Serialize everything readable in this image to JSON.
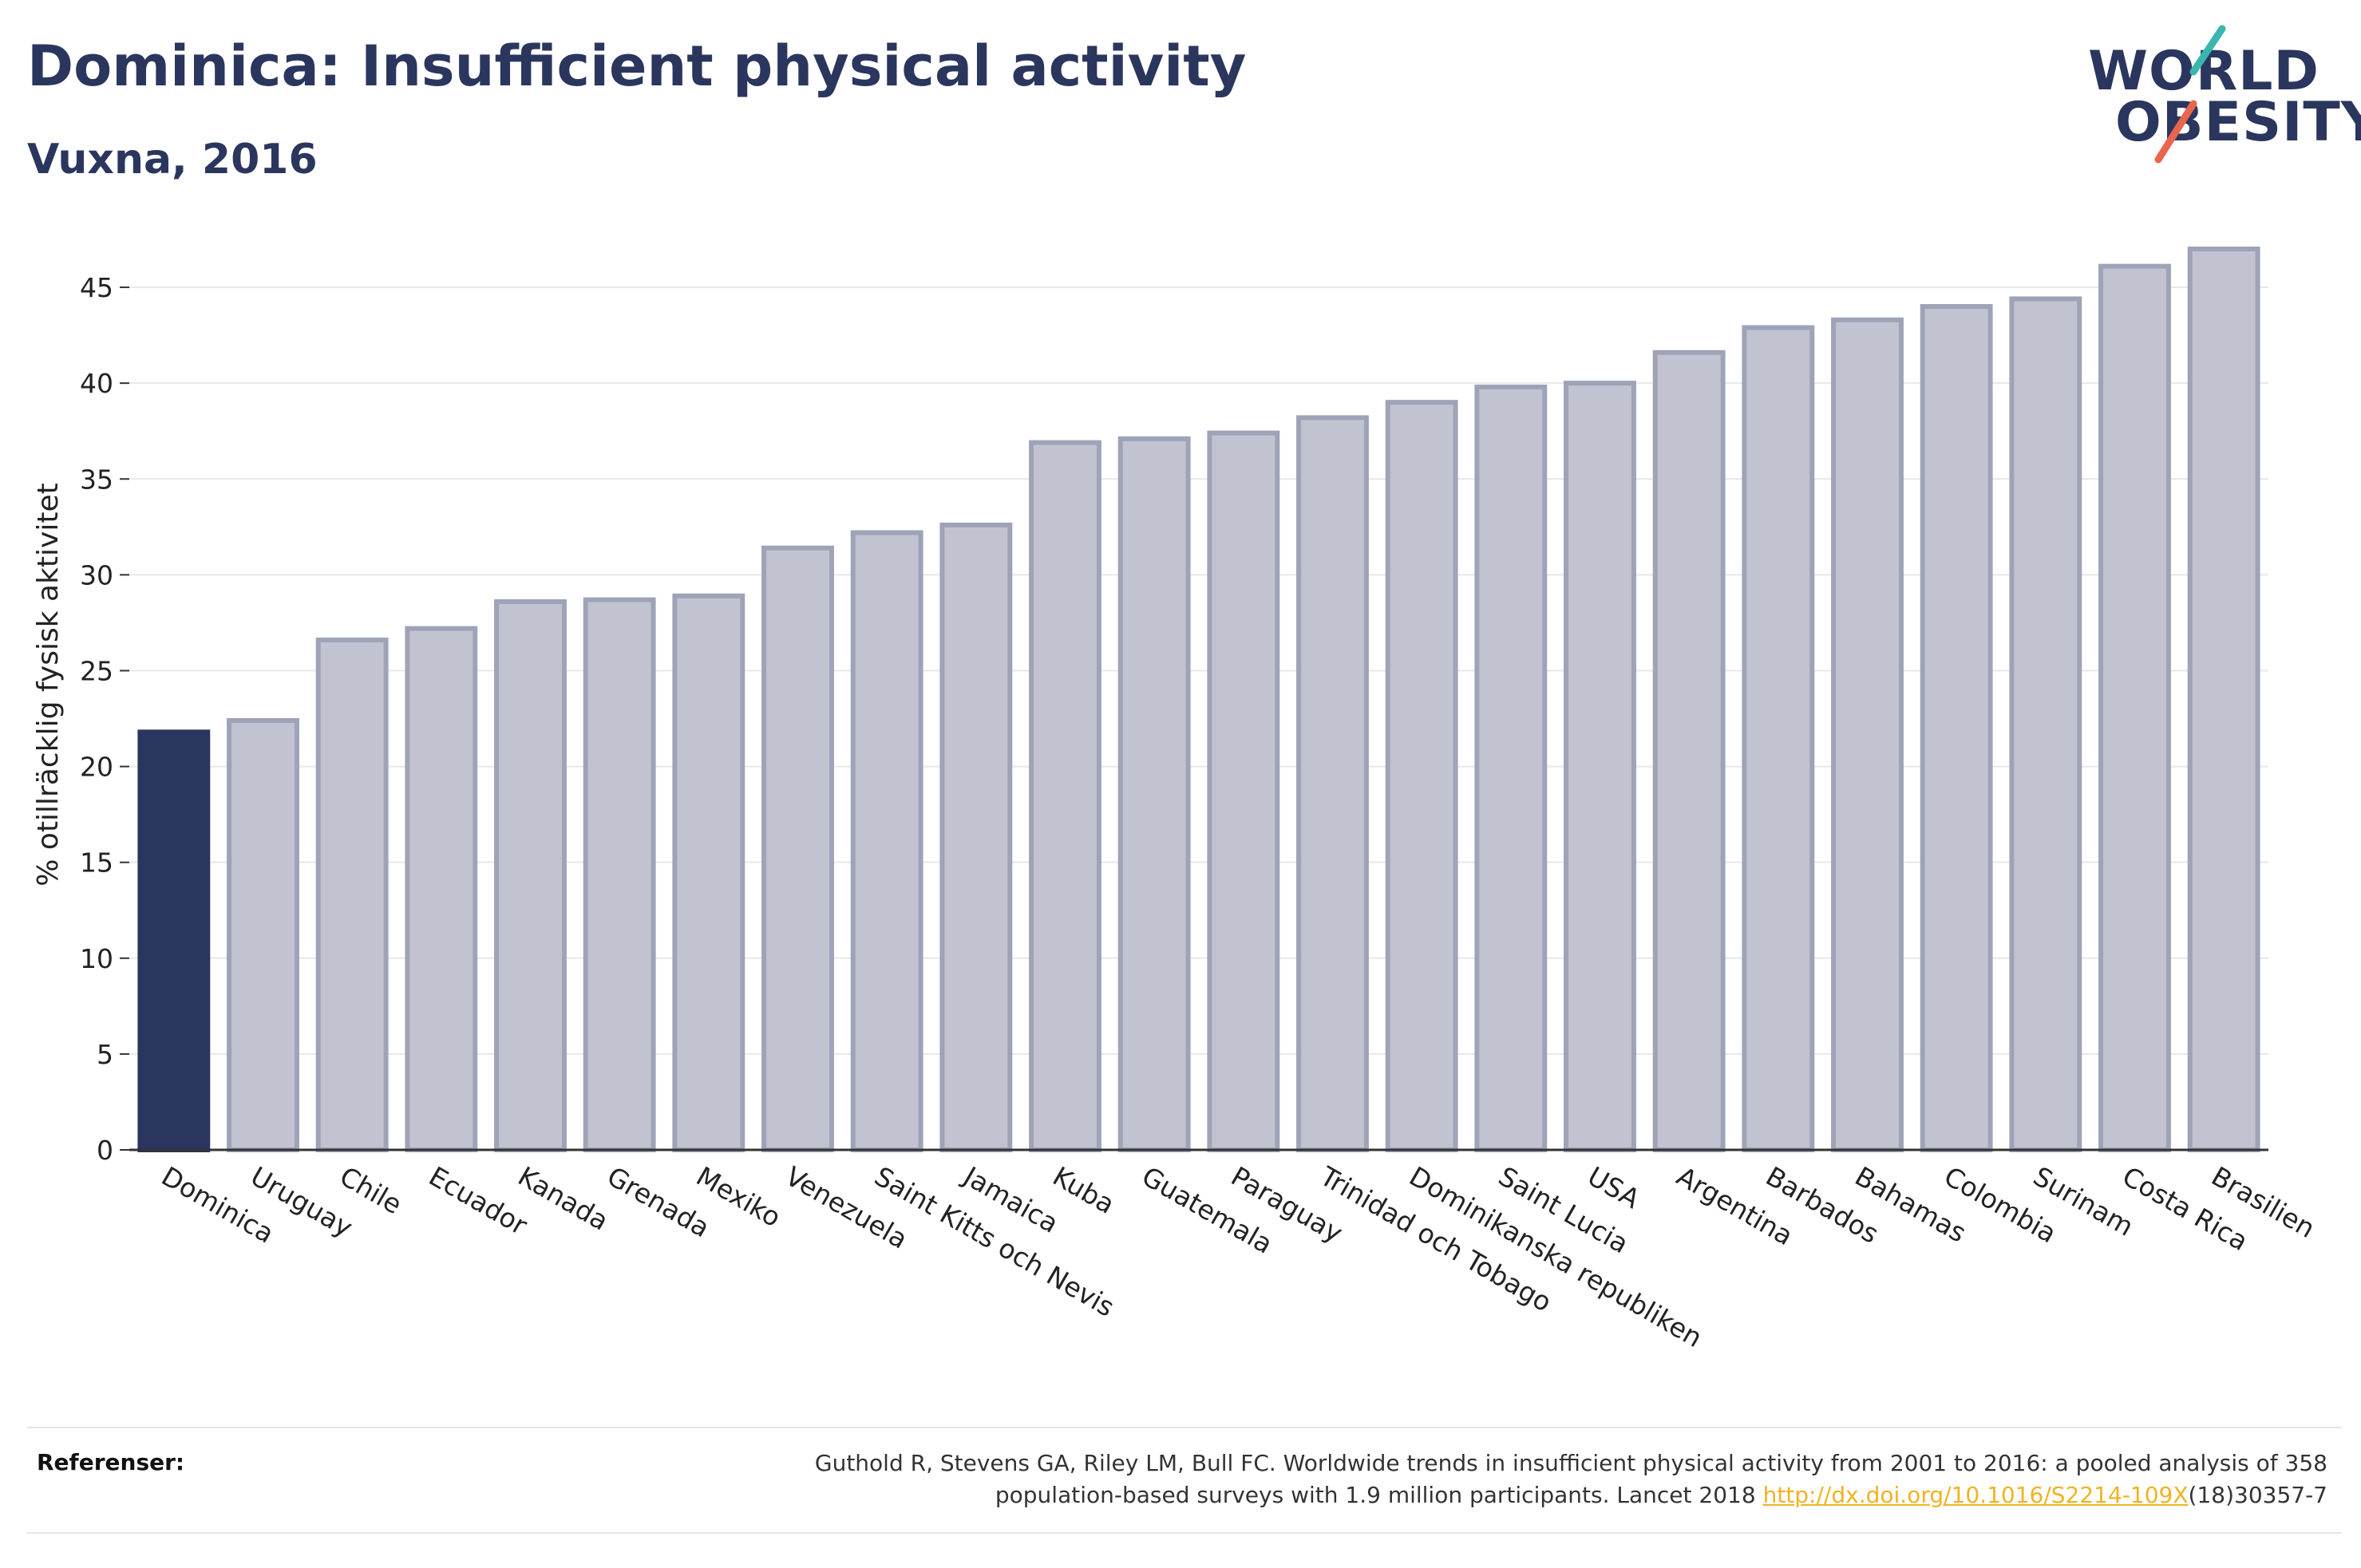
{
  "header": {
    "title": "Dominica: Insufficient physical activity",
    "subtitle": "Vuxna, 2016"
  },
  "logo": {
    "line1": "WORLD",
    "line2": "OBESITY"
  },
  "colors": {
    "highlight": "#2b365e",
    "bar": "#c1c4d0",
    "bar_border": "#9ea3b8",
    "grid": "#e8e8e8",
    "logo_teal": "#3ab5b0",
    "logo_coral": "#e8664f"
  },
  "chart_data": {
    "type": "bar",
    "ylabel": "% otillräcklig fysisk aktivitet",
    "ylim": [
      0,
      47.5
    ],
    "yticks": [
      0,
      5,
      10,
      15,
      20,
      25,
      30,
      35,
      40,
      45
    ],
    "highlight_category": "Dominica",
    "categories": [
      "Dominica",
      "Uruguay",
      "Chile",
      "Ecuador",
      "Kanada",
      "Grenada",
      "Mexiko",
      "Venezuela",
      "Saint Kitts och Nevis",
      "Jamaica",
      "Kuba",
      "Guatemala",
      "Paraguay",
      "Trinidad och Tobago",
      "Dominikanska republiken",
      "Saint Lucia",
      "USA",
      "Argentina",
      "Barbados",
      "Bahamas",
      "Colombia",
      "Surinam",
      "Costa Rica",
      "Brasilien"
    ],
    "values": [
      21.8,
      22.4,
      26.6,
      27.2,
      28.6,
      28.7,
      28.9,
      31.4,
      32.2,
      32.6,
      36.9,
      37.1,
      37.4,
      38.2,
      39.0,
      39.8,
      40.0,
      41.6,
      42.9,
      43.3,
      44.0,
      44.4,
      46.1,
      47.0
    ]
  },
  "footer": {
    "label": "Referenser:",
    "line1": "Guthold R, Stevens GA, Riley LM, Bull FC. Worldwide trends in insufficient physical activity from 2001 to 2016: a pooled analysis of 358",
    "line2_pre": "population-based surveys with 1.9 million participants. Lancet 2018 ",
    "link": "http://dx.doi.org/10.1016/S2214-109X",
    "line2_post": "(18)30357-7"
  }
}
